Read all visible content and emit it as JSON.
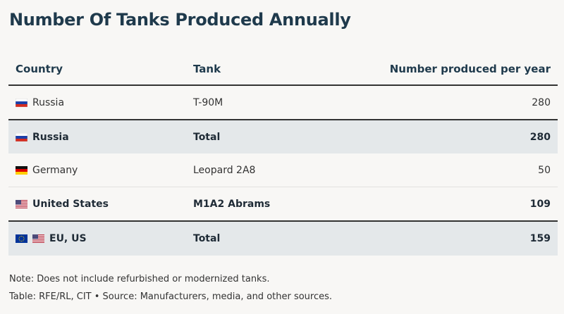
{
  "title": "Number Of Tanks Produced Annually",
  "chart_data": {
    "type": "table",
    "columns": [
      "Country",
      "Tank",
      "Number produced per year"
    ],
    "rows": [
      {
        "flags": [
          "russia"
        ],
        "country": "Russia",
        "tank": "T-90M",
        "value": "280",
        "bold": false,
        "total": false
      },
      {
        "flags": [
          "russia"
        ],
        "country": "Russia",
        "tank": "Total",
        "value": "280",
        "bold": true,
        "total": true
      },
      {
        "flags": [
          "germany"
        ],
        "country": "Germany",
        "tank": "Leopard 2A8",
        "value": "50",
        "bold": false,
        "total": false
      },
      {
        "flags": [
          "united-states"
        ],
        "country": "United States",
        "tank": "M1A2 Abrams",
        "value": "109",
        "bold": true,
        "total": false
      },
      {
        "flags": [
          "european-union",
          "united-states"
        ],
        "country": "EU, US",
        "tank": "Total",
        "value": "159",
        "bold": true,
        "total": true
      }
    ]
  },
  "footer": {
    "note": "Note: Does not include refurbished or modernized tanks.",
    "source": "Table: RFE/RL, CIT • Source: Manufacturers, media, and other sources."
  },
  "colors": {
    "background": "#f8f7f5",
    "title": "#1f3a4c",
    "total_row": "#e4e8ea"
  }
}
